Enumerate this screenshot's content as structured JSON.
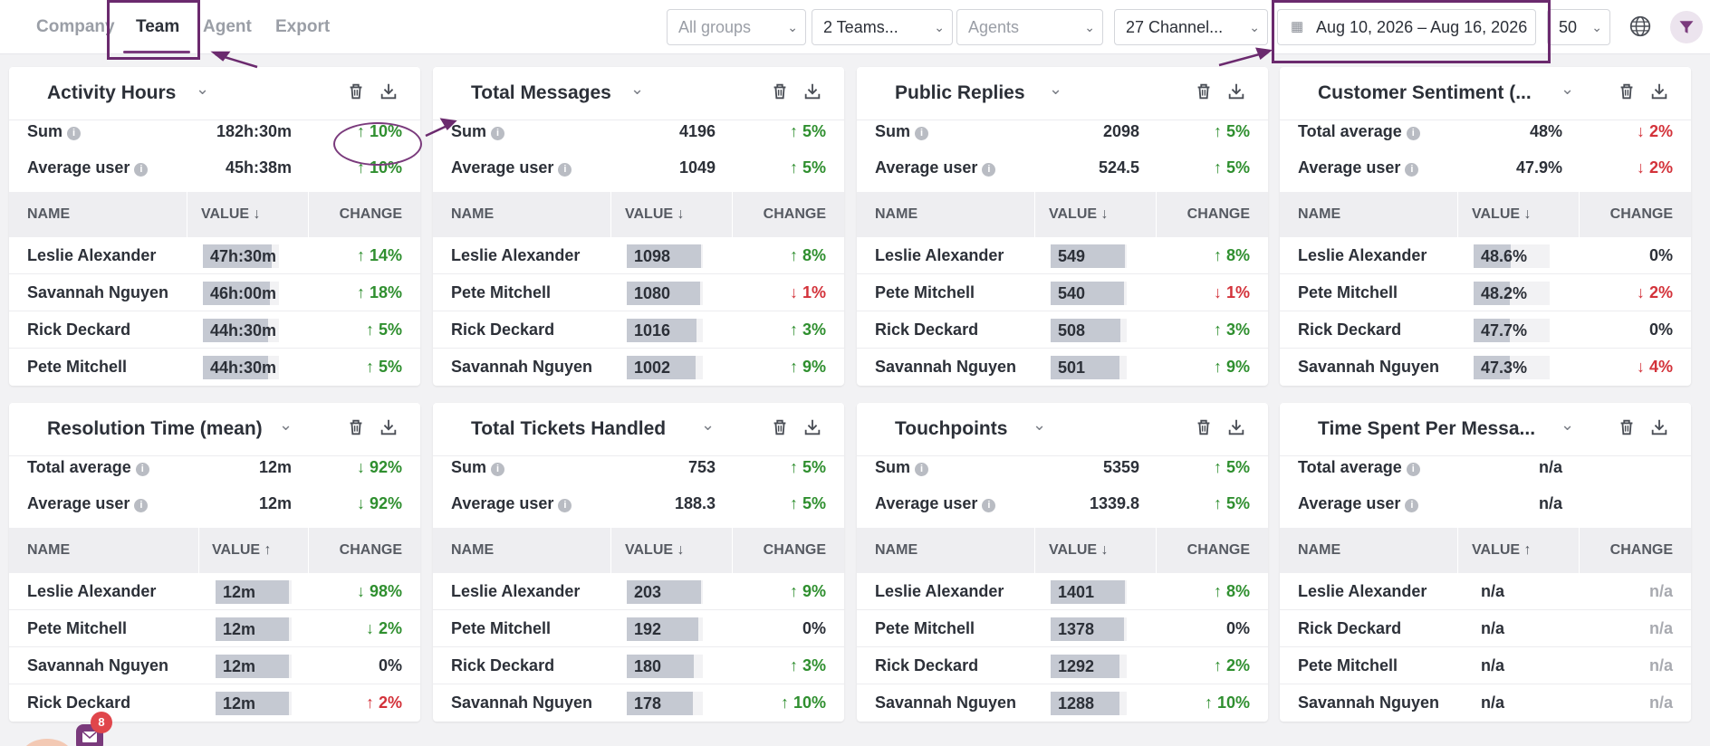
{
  "tabs": [
    {
      "label": "Company",
      "active": false
    },
    {
      "label": "Team",
      "active": true
    },
    {
      "label": "Agent",
      "active": false
    },
    {
      "label": "Export",
      "active": false
    }
  ],
  "filters": {
    "groups": "All groups",
    "teams": "2 Teams...",
    "agents": "Agents",
    "channels": "27 Channel...",
    "date_range": "Aug 10, 2026 – Aug 16, 2026",
    "per_page": "50"
  },
  "chat_badge": "8",
  "colors": {
    "accent": "#7a3a7c",
    "up": "#2f8f2f",
    "down": "#d3323a",
    "bar": "#c5c9d2"
  },
  "columns": {
    "name": "NAME",
    "value": "VALUE",
    "change": "CHANGE"
  },
  "cards": [
    {
      "title": "Activity Hours",
      "sort": "down",
      "summary": [
        {
          "label": "Sum",
          "value": "182h:30m",
          "change": "↑ 10%",
          "dir": "up"
        },
        {
          "label": "Average user",
          "value": "45h:38m",
          "change": "↑ 10%",
          "dir": "up"
        }
      ],
      "rows": [
        {
          "name": "Leslie Alexander",
          "value": "47h:30m",
          "fill": 0.9,
          "change": "↑ 14%",
          "dir": "up"
        },
        {
          "name": "Savannah Nguyen",
          "value": "46h:00m",
          "fill": 0.88,
          "change": "↑ 18%",
          "dir": "up"
        },
        {
          "name": "Rick Deckard",
          "value": "44h:30m",
          "fill": 0.86,
          "change": "↑ 5%",
          "dir": "up"
        },
        {
          "name": "Pete Mitchell",
          "value": "44h:30m",
          "fill": 0.86,
          "change": "↑ 5%",
          "dir": "up"
        }
      ]
    },
    {
      "title": "Total Messages",
      "sort": "down",
      "summary": [
        {
          "label": "Sum",
          "value": "4196",
          "change": "↑ 5%",
          "dir": "up"
        },
        {
          "label": "Average user",
          "value": "1049",
          "change": "↑ 5%",
          "dir": "up"
        }
      ],
      "rows": [
        {
          "name": "Leslie Alexander",
          "value": "1098",
          "fill": 0.98,
          "change": "↑ 8%",
          "dir": "up"
        },
        {
          "name": "Pete Mitchell",
          "value": "1080",
          "fill": 0.96,
          "change": "↓ 1%",
          "dir": "down"
        },
        {
          "name": "Rick Deckard",
          "value": "1016",
          "fill": 0.92,
          "change": "↑ 3%",
          "dir": "up"
        },
        {
          "name": "Savannah Nguyen",
          "value": "1002",
          "fill": 0.9,
          "change": "↑ 9%",
          "dir": "up"
        }
      ]
    },
    {
      "title": "Public Replies",
      "sort": "down",
      "summary": [
        {
          "label": "Sum",
          "value": "2098",
          "change": "↑ 5%",
          "dir": "up"
        },
        {
          "label": "Average user",
          "value": "524.5",
          "change": "↑ 5%",
          "dir": "up"
        }
      ],
      "rows": [
        {
          "name": "Leslie Alexander",
          "value": "549",
          "fill": 0.98,
          "change": "↑ 8%",
          "dir": "up"
        },
        {
          "name": "Pete Mitchell",
          "value": "540",
          "fill": 0.96,
          "change": "↓ 1%",
          "dir": "down"
        },
        {
          "name": "Rick Deckard",
          "value": "508",
          "fill": 0.92,
          "change": "↑ 3%",
          "dir": "up"
        },
        {
          "name": "Savannah Nguyen",
          "value": "501",
          "fill": 0.9,
          "change": "↑ 9%",
          "dir": "up"
        }
      ]
    },
    {
      "title": "Customer Sentiment (...",
      "sort": "down",
      "summary": [
        {
          "label": "Total average",
          "value": "48%",
          "change": "↓ 2%",
          "dir": "down"
        },
        {
          "label": "Average user",
          "value": "47.9%",
          "change": "↓ 2%",
          "dir": "down"
        }
      ],
      "rows": [
        {
          "name": "Leslie Alexander",
          "value": "48.6%",
          "fill": 0.486,
          "change": "0%",
          "dir": "neutral"
        },
        {
          "name": "Pete Mitchell",
          "value": "48.2%",
          "fill": 0.482,
          "change": "↓ 2%",
          "dir": "down"
        },
        {
          "name": "Rick Deckard",
          "value": "47.7%",
          "fill": 0.477,
          "change": "0%",
          "dir": "neutral"
        },
        {
          "name": "Savannah Nguyen",
          "value": "47.3%",
          "fill": 0.473,
          "change": "↓ 4%",
          "dir": "down"
        }
      ]
    },
    {
      "title": "Resolution Time (mean)",
      "sort": "up",
      "summary": [
        {
          "label": "Total average",
          "value": "12m",
          "change": "↓ 92%",
          "dir": "up"
        },
        {
          "label": "Average user",
          "value": "12m",
          "change": "↓ 92%",
          "dir": "up"
        }
      ],
      "rows": [
        {
          "name": "Leslie Alexander",
          "value": "12m",
          "fill": 0.96,
          "change": "↓ 98%",
          "dir": "up"
        },
        {
          "name": "Pete Mitchell",
          "value": "12m",
          "fill": 0.96,
          "change": "↓ 2%",
          "dir": "up"
        },
        {
          "name": "Savannah Nguyen",
          "value": "12m",
          "fill": 0.96,
          "change": "0%",
          "dir": "neutral"
        },
        {
          "name": "Rick Deckard",
          "value": "12m",
          "fill": 0.96,
          "change": "↑ 2%",
          "dir": "down"
        }
      ]
    },
    {
      "title": "Total Tickets Handled",
      "sort": "down",
      "summary": [
        {
          "label": "Sum",
          "value": "753",
          "change": "↑ 5%",
          "dir": "up"
        },
        {
          "label": "Average user",
          "value": "188.3",
          "change": "↑ 5%",
          "dir": "up"
        }
      ],
      "rows": [
        {
          "name": "Leslie Alexander",
          "value": "203",
          "fill": 0.98,
          "change": "↑ 9%",
          "dir": "up"
        },
        {
          "name": "Pete Mitchell",
          "value": "192",
          "fill": 0.94,
          "change": "0%",
          "dir": "neutral"
        },
        {
          "name": "Rick Deckard",
          "value": "180",
          "fill": 0.88,
          "change": "↑ 3%",
          "dir": "up"
        },
        {
          "name": "Savannah Nguyen",
          "value": "178",
          "fill": 0.87,
          "change": "↑ 10%",
          "dir": "up"
        }
      ]
    },
    {
      "title": "Touchpoints",
      "sort": "down",
      "summary": [
        {
          "label": "Sum",
          "value": "5359",
          "change": "↑ 5%",
          "dir": "up"
        },
        {
          "label": "Average user",
          "value": "1339.8",
          "change": "↑ 5%",
          "dir": "up"
        }
      ],
      "rows": [
        {
          "name": "Leslie Alexander",
          "value": "1401",
          "fill": 0.98,
          "change": "↑ 8%",
          "dir": "up"
        },
        {
          "name": "Pete Mitchell",
          "value": "1378",
          "fill": 0.96,
          "change": "0%",
          "dir": "neutral"
        },
        {
          "name": "Rick Deckard",
          "value": "1292",
          "fill": 0.9,
          "change": "↑ 2%",
          "dir": "up"
        },
        {
          "name": "Savannah Nguyen",
          "value": "1288",
          "fill": 0.9,
          "change": "↑ 10%",
          "dir": "up"
        }
      ]
    },
    {
      "title": "Time Spent Per Messa...",
      "sort": "up",
      "summary": [
        {
          "label": "Total average",
          "value": "n/a",
          "change": "",
          "dir": "neutral"
        },
        {
          "label": "Average user",
          "value": "n/a",
          "change": "",
          "dir": "neutral"
        }
      ],
      "rows": [
        {
          "name": "Leslie Alexander",
          "value": "n/a",
          "fill": null,
          "change": "n/a",
          "dir": "na"
        },
        {
          "name": "Rick Deckard",
          "value": "n/a",
          "fill": null,
          "change": "n/a",
          "dir": "na"
        },
        {
          "name": "Pete Mitchell",
          "value": "n/a",
          "fill": null,
          "change": "n/a",
          "dir": "na"
        },
        {
          "name": "Savannah Nguyen",
          "value": "n/a",
          "fill": null,
          "change": "n/a",
          "dir": "na"
        }
      ]
    }
  ]
}
